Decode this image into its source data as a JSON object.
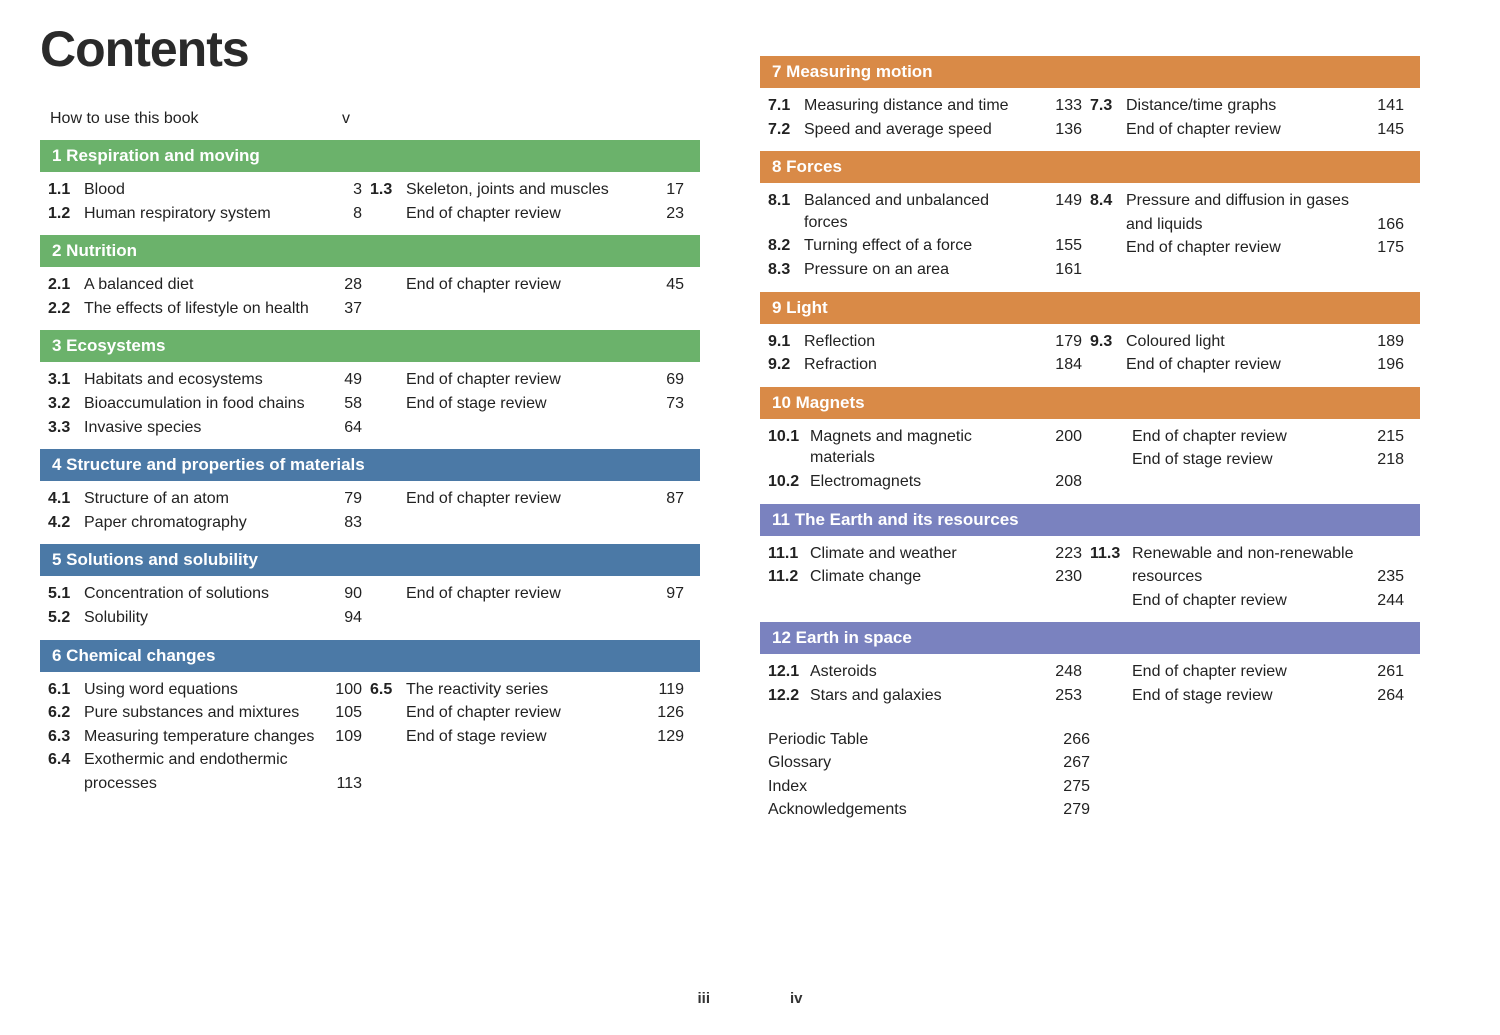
{
  "title": "Contents",
  "pageNumbers": {
    "left": "iii",
    "right": "iv"
  },
  "colors": {
    "green": "#6bb26b",
    "blue": "#4b79a6",
    "orange": "#d98a47",
    "purple": "#7a82bf"
  },
  "intro": {
    "label": "How to use this book",
    "page": "v"
  },
  "chapters": [
    {
      "id": "ch1",
      "color": "green",
      "header": "1 Respiration and moving",
      "left": [
        {
          "num": "1.1",
          "label": "Blood",
          "page": "3"
        },
        {
          "num": "1.2",
          "label": "Human respiratory system",
          "page": "8"
        }
      ],
      "right": [
        {
          "num": "1.3",
          "label": "Skeleton, joints and muscles",
          "page": "17"
        },
        {
          "num": "",
          "label": "End of chapter review",
          "page": "23"
        }
      ]
    },
    {
      "id": "ch2",
      "color": "green",
      "header": "2 Nutrition",
      "left": [
        {
          "num": "2.1",
          "label": "A balanced diet",
          "page": "28"
        },
        {
          "num": "2.2",
          "label": "The effects of lifestyle on health",
          "page": "37"
        }
      ],
      "right": [
        {
          "num": "",
          "label": "End of chapter review",
          "page": "45"
        }
      ]
    },
    {
      "id": "ch3",
      "color": "green",
      "header": "3 Ecosystems",
      "left": [
        {
          "num": "3.1",
          "label": "Habitats and ecosystems",
          "page": "49"
        },
        {
          "num": "3.2",
          "label": "Bioaccumulation in food chains",
          "page": "58"
        },
        {
          "num": "3.3",
          "label": "Invasive species",
          "page": "64"
        }
      ],
      "right": [
        {
          "num": "",
          "label": "End of chapter review",
          "page": "69"
        },
        {
          "num": "",
          "label": "End of stage review",
          "page": "73"
        }
      ]
    },
    {
      "id": "ch4",
      "color": "blue",
      "header": "4 Structure and properties of materials",
      "left": [
        {
          "num": "4.1",
          "label": "Structure of an atom",
          "page": "79"
        },
        {
          "num": "4.2",
          "label": "Paper chromatography",
          "page": "83"
        }
      ],
      "right": [
        {
          "num": "",
          "label": "End of chapter review",
          "page": "87"
        }
      ]
    },
    {
      "id": "ch5",
      "color": "blue",
      "header": "5 Solutions and solubility",
      "left": [
        {
          "num": "5.1",
          "label": "Concentration of solutions",
          "page": "90"
        },
        {
          "num": "5.2",
          "label": "Solubility",
          "page": "94"
        }
      ],
      "right": [
        {
          "num": "",
          "label": "End of chapter review",
          "page": "97"
        }
      ]
    },
    {
      "id": "ch6",
      "color": "blue",
      "header": "6 Chemical changes",
      "left": [
        {
          "num": "6.1",
          "label": "Using word equations",
          "page": "100"
        },
        {
          "num": "6.2",
          "label": "Pure substances and mixtures",
          "page": "105"
        },
        {
          "num": "6.3",
          "label": "Measuring temperature changes",
          "page": "109"
        },
        {
          "num": "6.4",
          "label": "Exothermic and endothermic",
          "page": ""
        },
        {
          "num": "",
          "label": "processes",
          "page": "113",
          "indent": true
        }
      ],
      "right": [
        {
          "num": "6.5",
          "label": "The reactivity series",
          "page": "119"
        },
        {
          "num": "",
          "label": "End of chapter review",
          "page": "126"
        },
        {
          "num": "",
          "label": "End of stage review",
          "page": "129"
        }
      ]
    },
    {
      "id": "ch7",
      "color": "orange",
      "header": "7 Measuring motion",
      "left": [
        {
          "num": "7.1",
          "label": "Measuring distance and time",
          "page": "133"
        },
        {
          "num": "7.2",
          "label": "Speed and average speed",
          "page": "136"
        }
      ],
      "right": [
        {
          "num": "7.3",
          "label": "Distance/time graphs",
          "page": "141"
        },
        {
          "num": "",
          "label": "End of chapter review",
          "page": "145"
        }
      ]
    },
    {
      "id": "ch8",
      "color": "orange",
      "header": "8 Forces",
      "left": [
        {
          "num": "8.1",
          "label": "Balanced and unbalanced forces",
          "page": "149"
        },
        {
          "num": "8.2",
          "label": "Turning effect of a force",
          "page": "155"
        },
        {
          "num": "8.3",
          "label": "Pressure on an area",
          "page": "161"
        }
      ],
      "right": [
        {
          "num": "8.4",
          "label": "Pressure and diffusion in gases",
          "page": ""
        },
        {
          "num": "",
          "label": "and liquids",
          "page": "166",
          "indent": true
        },
        {
          "num": "",
          "label": "End of chapter review",
          "page": "175"
        }
      ]
    },
    {
      "id": "ch9",
      "color": "orange",
      "header": "9 Light",
      "left": [
        {
          "num": "9.1",
          "label": "Reflection",
          "page": "179"
        },
        {
          "num": "9.2",
          "label": "Refraction",
          "page": "184"
        }
      ],
      "right": [
        {
          "num": "9.3",
          "label": "Coloured light",
          "page": "189"
        },
        {
          "num": "",
          "label": "End of chapter review",
          "page": "196"
        }
      ]
    },
    {
      "id": "ch10",
      "color": "orange",
      "header": "10 Magnets",
      "wide": true,
      "left": [
        {
          "num": "10.1",
          "label": "Magnets and magnetic materials",
          "page": "200"
        },
        {
          "num": "10.2",
          "label": "Electromagnets",
          "page": "208"
        }
      ],
      "right": [
        {
          "num": "",
          "label": "End of chapter review",
          "page": "215"
        },
        {
          "num": "",
          "label": "End of stage review",
          "page": "218"
        }
      ]
    },
    {
      "id": "ch11",
      "color": "purple",
      "header": "11 The Earth and its resources",
      "wide": true,
      "left": [
        {
          "num": "11.1",
          "label": "Climate and weather",
          "page": "223"
        },
        {
          "num": "11.2",
          "label": "Climate change",
          "page": "230"
        }
      ],
      "right": [
        {
          "num": "11.3",
          "label": "Renewable and non-renewable",
          "page": ""
        },
        {
          "num": "",
          "label": "resources",
          "page": "235",
          "indent": true
        },
        {
          "num": "",
          "label": "End of chapter review",
          "page": "244"
        }
      ]
    },
    {
      "id": "ch12",
      "color": "purple",
      "header": "12 Earth in space",
      "wide": true,
      "left": [
        {
          "num": "12.1",
          "label": "Asteroids",
          "page": "248"
        },
        {
          "num": "12.2",
          "label": "Stars and galaxies",
          "page": "253"
        }
      ],
      "right": [
        {
          "num": "",
          "label": "End of chapter review",
          "page": "261"
        },
        {
          "num": "",
          "label": "End of stage review",
          "page": "264"
        }
      ]
    }
  ],
  "backmatter": [
    {
      "label": "Periodic Table",
      "page": "266"
    },
    {
      "label": "Glossary",
      "page": "267"
    },
    {
      "label": "Index",
      "page": "275"
    },
    {
      "label": "Acknowledgements",
      "page": "279"
    }
  ]
}
